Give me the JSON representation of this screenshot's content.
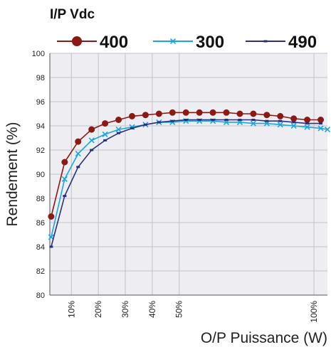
{
  "chart_data": {
    "type": "line",
    "legend_title": "I/P Vdc",
    "legend_position": "top",
    "xlabel": "O/P Puissance (W)",
    "ylabel": "Rendement (%)",
    "ylim": [
      80,
      100
    ],
    "yticks": [
      80,
      82,
      84,
      86,
      88,
      90,
      92,
      94,
      96,
      98,
      100
    ],
    "xlim": [
      2,
      105
    ],
    "xticks": [
      {
        "value": 10,
        "label": "10%"
      },
      {
        "value": 20,
        "label": "20%"
      },
      {
        "value": 30,
        "label": "30%"
      },
      {
        "value": 40,
        "label": "40%"
      },
      {
        "value": 50,
        "label": "50%"
      },
      {
        "value": 100,
        "label": "100%"
      }
    ],
    "grid": true,
    "background": "#ededf2",
    "series": [
      {
        "name": "400",
        "color": "#8b1a14",
        "marker": "circle",
        "x": [
          2.5,
          7.5,
          12.5,
          17.5,
          22.5,
          27.5,
          32.5,
          37.5,
          42.5,
          47.5,
          52.5,
          57.5,
          62.5,
          67.5,
          72.5,
          77.5,
          82.5,
          87.5,
          92.5,
          97.5,
          102.5
        ],
        "values": [
          86.5,
          91.0,
          92.7,
          93.7,
          94.2,
          94.5,
          94.8,
          94.9,
          95.0,
          95.1,
          95.1,
          95.1,
          95.1,
          95.1,
          95.0,
          95.0,
          94.9,
          94.8,
          94.6,
          94.5,
          94.5
        ]
      },
      {
        "name": "300",
        "color": "#1aa7e0",
        "marker": "x",
        "x": [
          2.5,
          7.5,
          12.5,
          17.5,
          22.5,
          27.5,
          32.5,
          37.5,
          42.5,
          47.5,
          52.5,
          57.5,
          62.5,
          67.5,
          72.5,
          77.5,
          82.5,
          87.5,
          92.5,
          97.5,
          102.5,
          105
        ],
        "values": [
          84.8,
          89.6,
          91.7,
          92.8,
          93.3,
          93.7,
          93.9,
          94.1,
          94.3,
          94.3,
          94.4,
          94.4,
          94.4,
          94.3,
          94.3,
          94.2,
          94.2,
          94.1,
          94.0,
          93.9,
          93.8,
          93.7
        ]
      },
      {
        "name": "490",
        "color": "#2c2f7e",
        "marker": "dash",
        "x": [
          2.5,
          7.5,
          12.5,
          17.5,
          22.5,
          27.5,
          32.5,
          37.5,
          42.5,
          47.5,
          52.5,
          57.5,
          62.5,
          67.5,
          72.5,
          77.5,
          82.5,
          87.5,
          92.5,
          97.5,
          102.5
        ],
        "values": [
          84.0,
          88.2,
          90.6,
          92.0,
          92.8,
          93.4,
          93.8,
          94.1,
          94.3,
          94.4,
          94.5,
          94.5,
          94.5,
          94.5,
          94.5,
          94.5,
          94.4,
          94.4,
          94.3,
          94.2,
          94.2
        ]
      }
    ]
  }
}
